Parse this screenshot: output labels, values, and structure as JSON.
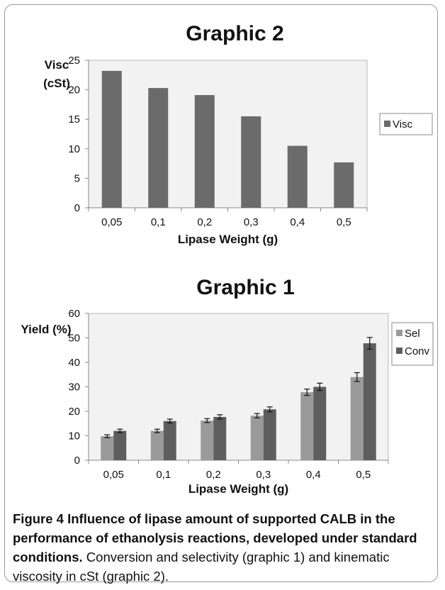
{
  "chart_data": [
    {
      "type": "bar",
      "title": "Graphic 2",
      "ylabel": "Visc (cSt)",
      "ylabel_lines": [
        "Visc",
        "(cSt)"
      ],
      "xlabel": "Lipase Weight (g)",
      "categories": [
        "0,05",
        "0,1",
        "0,2",
        "0,3",
        "0,4",
        "0,5"
      ],
      "series": [
        {
          "name": "Visc",
          "color": "#6b6b6b",
          "values": [
            23.2,
            20.3,
            19.1,
            15.5,
            10.5,
            7.7
          ]
        }
      ],
      "ylim": [
        0,
        25
      ],
      "yticks": [
        0,
        5,
        10,
        15,
        20,
        25
      ],
      "grid": false,
      "legend": "right"
    },
    {
      "type": "bar",
      "title": "Graphic 1",
      "ylabel": "Yield (%)",
      "xlabel": "Lipase Weight (g)",
      "categories": [
        "0,05",
        "0,1",
        "0,2",
        "0,3",
        "0,4",
        "0,5"
      ],
      "series": [
        {
          "name": "Sel",
          "color": "#9a9a9a",
          "values": [
            9.8,
            12.0,
            16.2,
            18.2,
            27.8,
            34.0
          ],
          "errors": [
            0.6,
            0.7,
            0.8,
            0.9,
            1.3,
            1.8
          ]
        },
        {
          "name": "Conv",
          "color": "#5e5e5e",
          "values": [
            12.0,
            16.0,
            17.7,
            20.8,
            30.0,
            47.8
          ],
          "errors": [
            0.7,
            0.8,
            0.9,
            1.0,
            1.5,
            2.4
          ]
        }
      ],
      "ylim": [
        0,
        60
      ],
      "yticks": [
        0,
        10,
        20,
        30,
        40,
        50,
        60
      ],
      "grid": false,
      "legend": "top-right"
    }
  ],
  "caption": {
    "bold": "Figure 4 Influence of lipase amount of supported CALB in the performance of ethanolysis reactions, developed under standard conditions.",
    "text": " Conversion and selectivity (graphic 1) and kinematic viscosity in cSt (graphic 2)."
  }
}
